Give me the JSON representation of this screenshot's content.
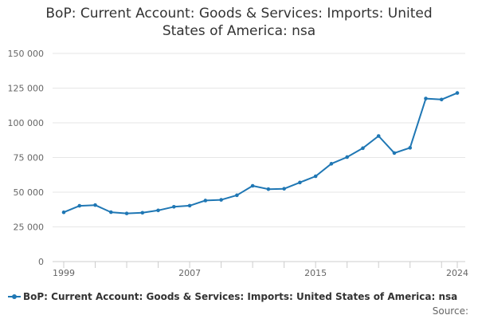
{
  "chart_data": {
    "type": "line",
    "title_lines": [
      "BoP: Current Account: Goods & Services: Imports: United",
      "States of America: nsa"
    ],
    "x": [
      1999,
      2000,
      2001,
      2002,
      2003,
      2004,
      2005,
      2006,
      2007,
      2008,
      2009,
      2010,
      2011,
      2012,
      2013,
      2014,
      2015,
      2016,
      2017,
      2018,
      2019,
      2020,
      2021,
      2022,
      2023,
      2024
    ],
    "series": [
      {
        "name": "BoP: Current Account: Goods & Services: Imports: United States of America: nsa",
        "color": "#1f77b4",
        "values": [
          35500,
          40200,
          40700,
          35600,
          34700,
          35200,
          36900,
          39500,
          40300,
          44000,
          44500,
          47800,
          54600,
          52200,
          52500,
          57000,
          61500,
          70500,
          75300,
          81700,
          90500,
          78200,
          82000,
          117500,
          116800,
          121500
        ]
      }
    ],
    "xticks": [
      1999,
      2007,
      2015,
      2024
    ],
    "yticks": [
      0,
      25000,
      50000,
      75000,
      100000,
      125000,
      150000
    ],
    "ytick_labels": [
      "0",
      "25 000",
      "50 000",
      "75 000",
      "100 000",
      "125 000",
      "150 000"
    ],
    "xlabel": "",
    "ylabel": "",
    "xlim": [
      1999,
      2024
    ],
    "ylim": [
      0,
      150000
    ],
    "grid": true,
    "legend_position": "bottom"
  },
  "source_label": "Source:"
}
